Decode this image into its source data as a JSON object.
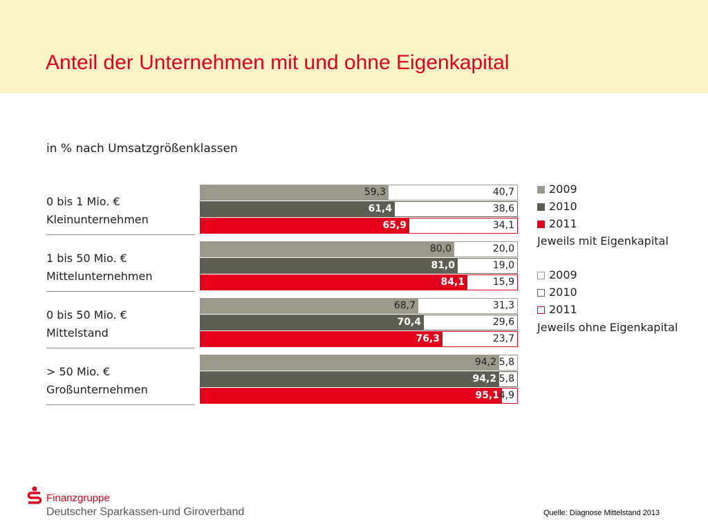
{
  "slide": {
    "title": "Anteil der Unternehmen mit und ohne Eigenkapital",
    "subtitle": "in % nach Umsatzgrößenklassen"
  },
  "colors": {
    "header_bg": "#fcf4c6",
    "title": "#e2001a",
    "2009": "#9b9a8a",
    "2010": "#5f5e52",
    "2011": "#e2001a"
  },
  "chart_data": {
    "type": "bar",
    "orientation": "horizontal",
    "stacked_percent": true,
    "subtitle": "in % nach Umsatzgrößenklassen",
    "groups": [
      {
        "label_lines": [
          "0 bis 1 Mio. €",
          "Kleinunternehmen"
        ],
        "rows": [
          {
            "year": "2009",
            "with": "59,3",
            "without": "40,7"
          },
          {
            "year": "2010",
            "with": "61,4",
            "without": "38,6"
          },
          {
            "year": "2011",
            "with": "65,9",
            "without": "34,1"
          }
        ]
      },
      {
        "label_lines": [
          "1 bis 50 Mio. €",
          "Mittelunternehmen"
        ],
        "rows": [
          {
            "year": "2009",
            "with": "80,0",
            "without": "20,0"
          },
          {
            "year": "2010",
            "with": "81,0",
            "without": "19,0"
          },
          {
            "year": "2011",
            "with": "84,1",
            "without": "15,9"
          }
        ]
      },
      {
        "label_lines": [
          "0 bis 50 Mio. €",
          "Mittelstand"
        ],
        "rows": [
          {
            "year": "2009",
            "with": "68,7",
            "without": "31,3"
          },
          {
            "year": "2010",
            "with": "70,4",
            "without": "29,6"
          },
          {
            "year": "2011",
            "with": "76,3",
            "without": "23,7"
          }
        ]
      },
      {
        "label_lines": [
          "> 50 Mio. €",
          "Großunternehmen"
        ],
        "rows": [
          {
            "year": "2009",
            "with": "94,2",
            "without": "5,8"
          },
          {
            "year": "2010",
            "with": "94,2",
            "without": "5,8"
          },
          {
            "year": "2011",
            "with": "95,1",
            "without": "4,9"
          }
        ]
      }
    ],
    "legend": {
      "with": {
        "years": [
          "2009",
          "2010",
          "2011"
        ],
        "caption": "Jeweils mit Eigenkapital"
      },
      "without": {
        "years": [
          "2009",
          "2010",
          "2011"
        ],
        "caption": "Jeweils ohne Eigenkapital"
      }
    }
  },
  "footer": {
    "brand_line1": "Finanzgruppe",
    "brand_line2": "Deutscher Sparkassen-und Giroverband",
    "source": "Quelle: Diagnose Mittelstand 2013"
  }
}
